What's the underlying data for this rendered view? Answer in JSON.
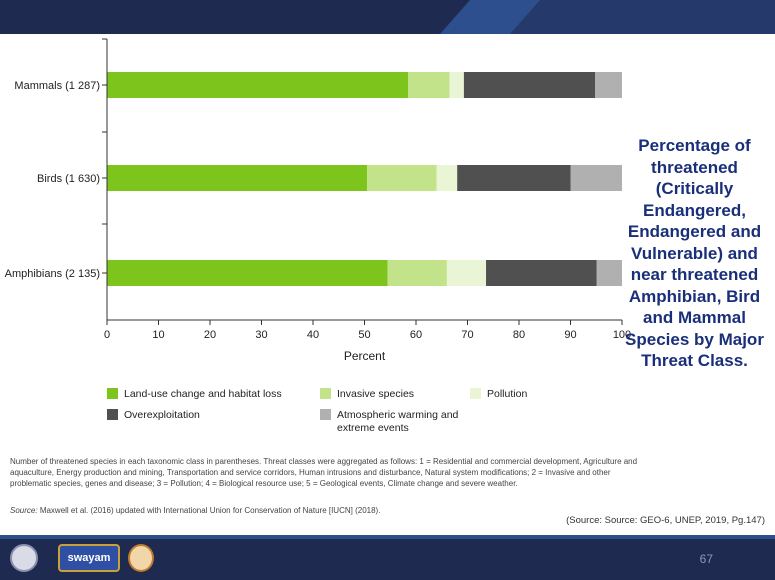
{
  "slide": {
    "side_title": "Percentage of threatened (Critically Endangered, Endangered and Vulnerable) and near threatened Amphibian, Bird and Mammal Species by Major Threat Class.",
    "footnote": "Number of threatened species in each taxonomic class in parentheses. Threat classes were aggregated as follows: 1 = Residential and commercial development, Agriculture and aquaculture, Energy production and mining, Transportation and service corridors, Human intrusions and disturbance, Natural system modifications; 2 = Invasive and other problematic species, genes and disease; 3 = Pollution; 4 = Biological resource use; 5 = Geological events, Climate change and severe weather.",
    "source_label": "Source:",
    "source_text": "Maxwell et al. (2016) updated with International Union for Conservation of Nature [IUCN] (2018).",
    "citation": "(Source: Source: GEO-6, UNEP, 2019, Pg.147)",
    "page_number": "67",
    "logo_text": "swayam"
  },
  "chart_data": {
    "type": "bar",
    "orientation": "horizontal",
    "stacked": true,
    "categories": [
      "Mammals (1 287)",
      "Birds (1 630)",
      "Amphibians (2 135)"
    ],
    "xlabel": "Percent",
    "xlim": [
      0,
      100
    ],
    "xticks": [
      0,
      10,
      20,
      30,
      40,
      50,
      60,
      70,
      80,
      90,
      100
    ],
    "series": [
      {
        "name": "Land-use change and habitat loss",
        "color": "#7dc41c",
        "values": [
          58.5,
          50.5,
          54.5
        ]
      },
      {
        "name": "Invasive species",
        "color": "#c3e38a",
        "values": [
          8,
          13.5,
          11.5
        ]
      },
      {
        "name": "Pollution",
        "color": "#eaf5d6",
        "values": [
          2.8,
          4,
          7.6
        ]
      },
      {
        "name": "Overexploitation",
        "color": "#505050",
        "values": [
          25.5,
          22,
          21.5
        ]
      },
      {
        "name": "Atmospheric warming and extreme events",
        "color": "#b0b0b0",
        "values": [
          5.2,
          10,
          4.9
        ]
      }
    ],
    "legend_position": "bottom",
    "grid": false
  }
}
